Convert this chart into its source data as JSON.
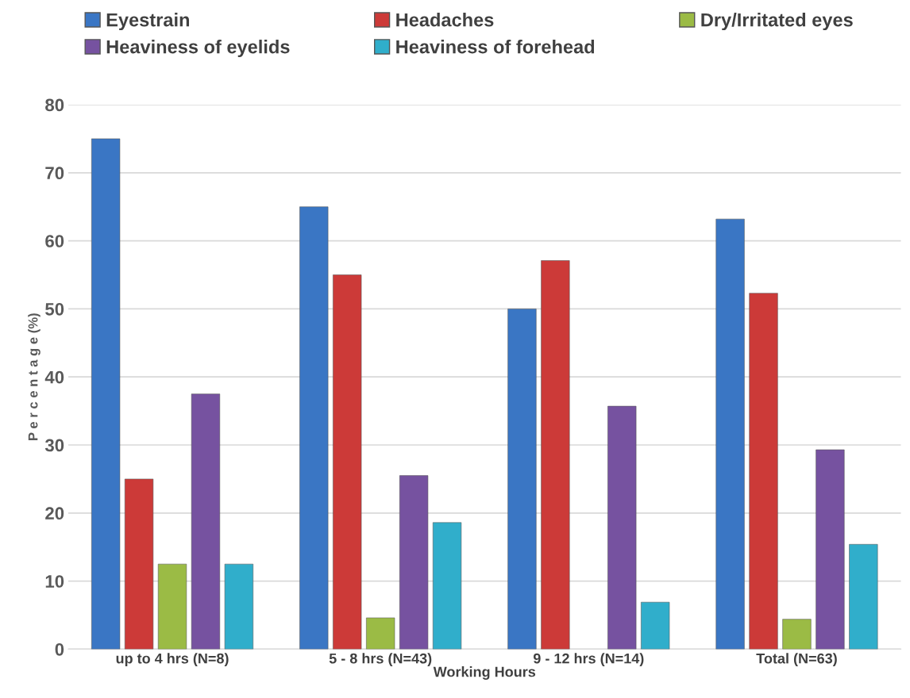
{
  "chart_data": {
    "type": "bar",
    "xlabel": "Working Hours",
    "ylabel": "P e r c e n t a g e (%)",
    "categories": [
      "up to 4 hrs (N=8)",
      "5 - 8 hrs (N=43)",
      "9 - 12 hrs (N=14)",
      "Total (N=63)"
    ],
    "series": [
      {
        "name": "Eyestrain",
        "color": "#3a76c4",
        "values": [
          75,
          65,
          50,
          63.2
        ]
      },
      {
        "name": "Headaches",
        "color": "#cc3a38",
        "values": [
          25,
          55,
          57.1,
          52.3
        ]
      },
      {
        "name": "Dry/Irritated eyes",
        "color": "#9bbb45",
        "values": [
          12.5,
          4.6,
          0,
          4.4
        ]
      },
      {
        "name": "Heaviness of eyelids",
        "color": "#7652a0",
        "values": [
          37.5,
          25.5,
          35.7,
          29.3
        ]
      },
      {
        "name": "Heaviness of forehead",
        "color": "#30aecb",
        "values": [
          12.5,
          18.6,
          6.9,
          15.4
        ]
      }
    ],
    "ylim": [
      0,
      80
    ],
    "yticks": [
      0,
      10,
      20,
      30,
      40,
      50,
      60,
      70,
      80
    ],
    "grid": "y",
    "legend": "top"
  }
}
